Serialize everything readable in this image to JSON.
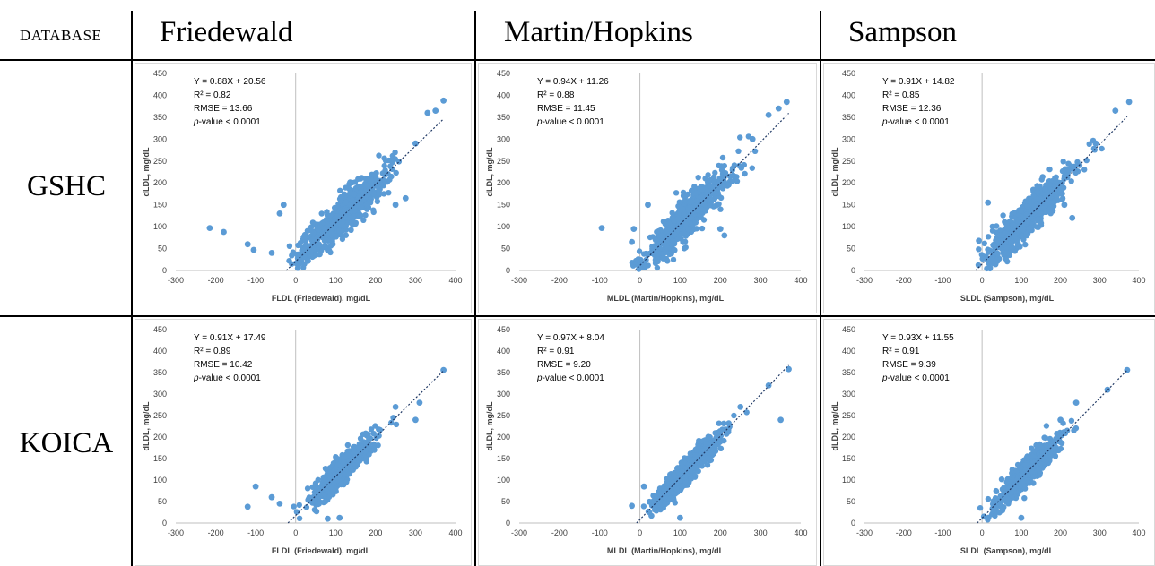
{
  "header": {
    "database_label": "DATABASE",
    "columns": [
      "Friedewald",
      "Martin/Hopkins",
      "Sampson"
    ],
    "rows": [
      "GSHC",
      "KOICA"
    ]
  },
  "colors": {
    "points": "#5b9bd5",
    "trend": "#1f3864",
    "axis": "#bfbfbf",
    "text": "#404040"
  },
  "chart_data": [
    {
      "type": "scatter",
      "database": "GSHC",
      "method": "Friedewald",
      "xlabel": "FLDL (Friedewald), mg/dL",
      "ylabel": "dLDL, mg/dL",
      "xlim": [
        -300,
        400
      ],
      "ylim": [
        0,
        450
      ],
      "xticks": [
        "-300",
        "-200",
        "-100",
        "0",
        "100",
        "200",
        "300",
        "400"
      ],
      "yticks": [
        "0",
        "50",
        "100",
        "150",
        "200",
        "250",
        "300",
        "350",
        "400",
        "450"
      ],
      "stats": [
        "Y = 0.88X + 20.56",
        "R² = 0.82",
        "RMSE = 13.66",
        "p-value < 0.0001"
      ],
      "slope": 0.88,
      "intercept": 20.56,
      "outliers": [
        [
          -215,
          97
        ],
        [
          -180,
          88
        ],
        [
          -120,
          60
        ],
        [
          -105,
          47
        ],
        [
          -60,
          40
        ],
        [
          -40,
          130
        ],
        [
          -30,
          150
        ],
        [
          250,
          150
        ],
        [
          275,
          165
        ],
        [
          300,
          290
        ],
        [
          330,
          360
        ],
        [
          350,
          365
        ],
        [
          370,
          388
        ]
      ]
    },
    {
      "type": "scatter",
      "database": "GSHC",
      "method": "Martin/Hopkins",
      "xlabel": "MLDL (Martin/Hopkins), mg/dL",
      "ylabel": "dLDL, mg/dL",
      "xlim": [
        -300,
        400
      ],
      "ylim": [
        0,
        450
      ],
      "xticks": [
        "-300",
        "-200",
        "-100",
        "0",
        "100",
        "200",
        "300",
        "400"
      ],
      "yticks": [
        "0",
        "50",
        "100",
        "150",
        "200",
        "250",
        "300",
        "350",
        "400",
        "450"
      ],
      "stats": [
        "Y = 0.94X + 11.26",
        "R² = 0.88",
        "RMSE = 11.45",
        "p-value < 0.0001"
      ],
      "slope": 0.94,
      "intercept": 11.26,
      "outliers": [
        [
          -95,
          97
        ],
        [
          -20,
          65
        ],
        [
          -15,
          95
        ],
        [
          20,
          150
        ],
        [
          200,
          95
        ],
        [
          210,
          80
        ],
        [
          280,
          300
        ],
        [
          320,
          355
        ],
        [
          345,
          370
        ],
        [
          365,
          385
        ]
      ]
    },
    {
      "type": "scatter",
      "database": "GSHC",
      "method": "Sampson",
      "xlabel": "SLDL (Sampson), mg/dL",
      "ylabel": "dLDL, mg/dL",
      "xlim": [
        -300,
        400
      ],
      "ylim": [
        0,
        450
      ],
      "xticks": [
        "-300",
        "-200",
        "-100",
        "0",
        "100",
        "200",
        "300",
        "400"
      ],
      "yticks": [
        "0",
        "50",
        "100",
        "150",
        "200",
        "250",
        "300",
        "350",
        "400",
        "450"
      ],
      "stats": [
        "Y = 0.91X + 14.82",
        "R² = 0.85",
        "RMSE = 12.36",
        "p-value < 0.0001"
      ],
      "slope": 0.91,
      "intercept": 14.82,
      "outliers": [
        [
          -8,
          68
        ],
        [
          15,
          155
        ],
        [
          210,
          150
        ],
        [
          230,
          120
        ],
        [
          290,
          290
        ],
        [
          340,
          365
        ],
        [
          375,
          385
        ]
      ]
    },
    {
      "type": "scatter",
      "database": "KOICA",
      "method": "Friedewald",
      "xlabel": "FLDL (Friedewald), mg/dL",
      "ylabel": "dLDL, mg/dL",
      "xlim": [
        -300,
        400
      ],
      "ylim": [
        0,
        450
      ],
      "xticks": [
        "-300",
        "-200",
        "-100",
        "0",
        "100",
        "200",
        "300",
        "400"
      ],
      "yticks": [
        "0",
        "50",
        "100",
        "150",
        "200",
        "250",
        "300",
        "350",
        "400",
        "450"
      ],
      "stats": [
        "Y = 0.91X + 17.49",
        "R² = 0.89",
        "RMSE = 10.42",
        "p-value < 0.0001"
      ],
      "slope": 0.91,
      "intercept": 17.49,
      "outliers": [
        [
          -120,
          38
        ],
        [
          -100,
          85
        ],
        [
          -60,
          60
        ],
        [
          -40,
          45
        ],
        [
          80,
          10
        ],
        [
          110,
          12
        ],
        [
          250,
          270
        ],
        [
          300,
          240
        ],
        [
          310,
          280
        ],
        [
          370,
          356
        ]
      ]
    },
    {
      "type": "scatter",
      "database": "KOICA",
      "method": "Martin/Hopkins",
      "xlabel": "MLDL (Martin/Hopkins), mg/dL",
      "ylabel": "dLDL, mg/dL",
      "xlim": [
        -300,
        400
      ],
      "ylim": [
        0,
        450
      ],
      "xticks": [
        "-300",
        "-200",
        "-100",
        "0",
        "100",
        "200",
        "300",
        "400"
      ],
      "yticks": [
        "0",
        "50",
        "100",
        "150",
        "200",
        "250",
        "300",
        "350",
        "400",
        "450"
      ],
      "stats": [
        "Y = 0.97X + 8.04",
        "R² = 0.91",
        "RMSE = 9.20",
        "p-value < 0.0001"
      ],
      "slope": 0.97,
      "intercept": 8.04,
      "outliers": [
        [
          -20,
          40
        ],
        [
          10,
          85
        ],
        [
          100,
          12
        ],
        [
          250,
          270
        ],
        [
          320,
          320
        ],
        [
          350,
          240
        ],
        [
          370,
          358
        ]
      ]
    },
    {
      "type": "scatter",
      "database": "KOICA",
      "method": "Sampson",
      "xlabel": "SLDL (Sampson), mg/dL",
      "ylabel": "dLDL, mg/dL",
      "xlim": [
        -300,
        400
      ],
      "ylim": [
        0,
        450
      ],
      "xticks": [
        "-300",
        "-200",
        "-100",
        "0",
        "100",
        "200",
        "300",
        "400"
      ],
      "yticks": [
        "0",
        "50",
        "100",
        "150",
        "200",
        "250",
        "300",
        "350",
        "400",
        "450"
      ],
      "stats": [
        "Y = 0.93X + 11.55",
        "R² = 0.91",
        "RMSE = 9.39",
        "p-value < 0.0001"
      ],
      "slope": 0.93,
      "intercept": 11.55,
      "outliers": [
        [
          5,
          15
        ],
        [
          100,
          12
        ],
        [
          200,
          240
        ],
        [
          240,
          280
        ],
        [
          320,
          310
        ],
        [
          370,
          356
        ]
      ]
    }
  ]
}
